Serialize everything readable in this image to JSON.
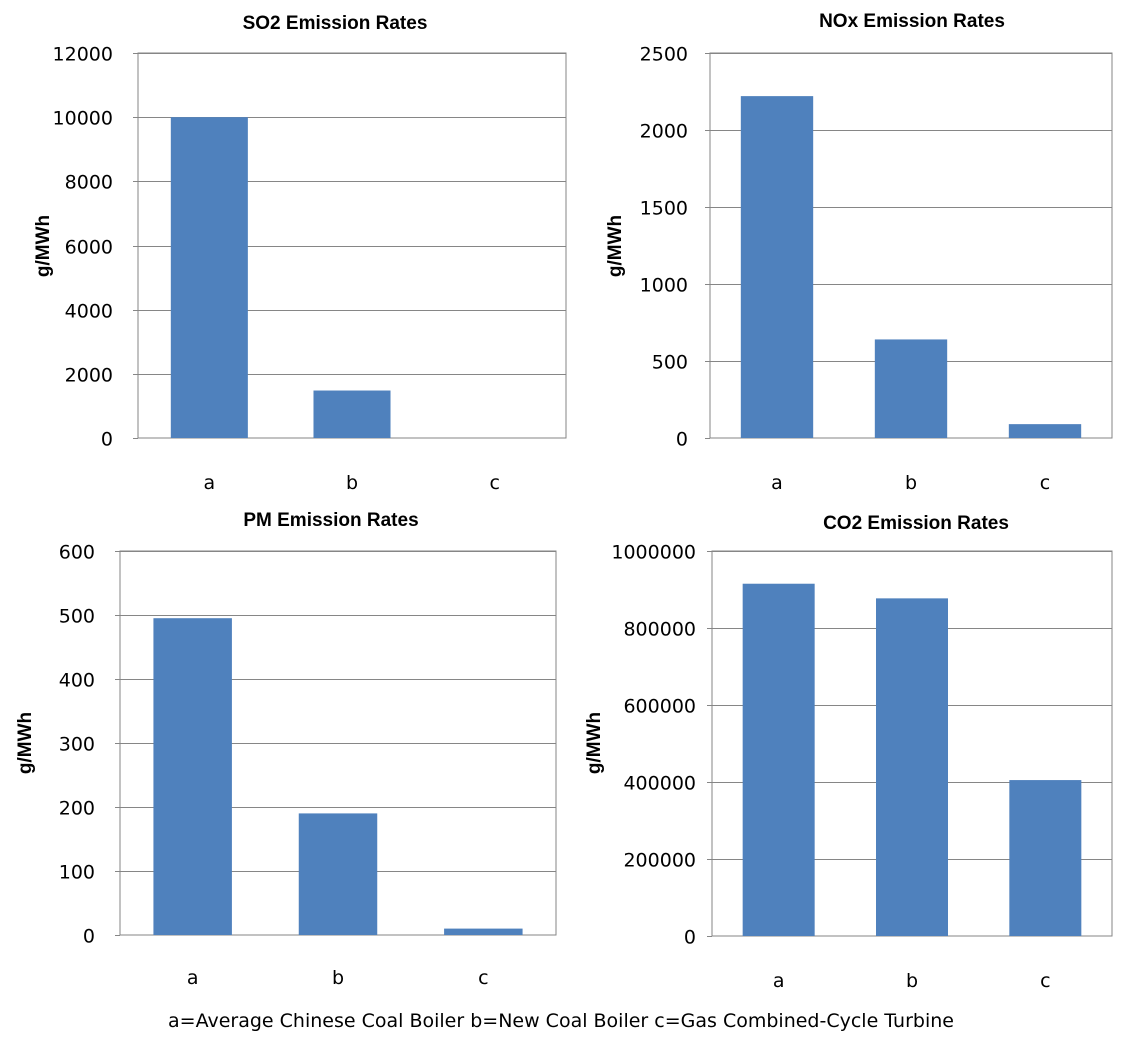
{
  "chart_data": [
    {
      "type": "bar",
      "title": "SO2 Emission Rates",
      "ylabel": "g/MWh",
      "categories": [
        "a",
        "b",
        "c"
      ],
      "values": [
        10000,
        1480,
        0
      ],
      "ylim": [
        0,
        12000
      ],
      "yticks": [
        0,
        2000,
        4000,
        6000,
        8000,
        10000,
        12000
      ],
      "grid": true,
      "legend": "none"
    },
    {
      "type": "bar",
      "title": "NOx Emission Rates",
      "ylabel": "g/MWh",
      "categories": [
        "a",
        "b",
        "c"
      ],
      "values": [
        2220,
        640,
        90
      ],
      "ylim": [
        0,
        2500
      ],
      "yticks": [
        0,
        500,
        1000,
        1500,
        2000,
        2500
      ],
      "grid": true,
      "legend": "none"
    },
    {
      "type": "bar",
      "title": "PM Emission Rates",
      "ylabel": "g/MWh",
      "categories": [
        "a",
        "b",
        "c"
      ],
      "values": [
        495,
        190,
        10
      ],
      "ylim": [
        0,
        600
      ],
      "yticks": [
        0,
        100,
        200,
        300,
        400,
        500,
        600
      ],
      "grid": true,
      "legend": "none"
    },
    {
      "type": "bar",
      "title": "CO2 Emission Rates",
      "ylabel": "g/MWh",
      "categories": [
        "a",
        "b",
        "c"
      ],
      "values": [
        915000,
        877000,
        405000
      ],
      "ylim": [
        0,
        1000000
      ],
      "yticks": [
        0,
        200000,
        400000,
        600000,
        800000,
        1000000
      ],
      "grid": true,
      "legend": "none"
    }
  ],
  "footnote": "a=Average Chinese Coal Boiler  b=New Coal Boiler  c=Gas Combined-Cycle Turbine",
  "colors": {
    "bar": "#4f81bd",
    "grid": "#868686",
    "axis": "#868686"
  }
}
